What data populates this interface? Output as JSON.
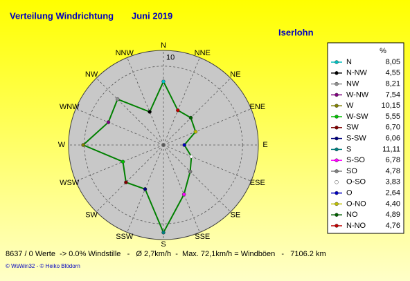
{
  "title": "Verteilung Windrichtung",
  "period": "Juni 2019",
  "location": "Iserlohn",
  "chart_data": {
    "type": "polar",
    "directions": [
      "N",
      "NNE",
      "NE",
      "ENE",
      "E",
      "ESE",
      "SE",
      "SSE",
      "S",
      "SSW",
      "SW",
      "WSW",
      "W",
      "WNW",
      "NW",
      "NNW"
    ],
    "rlim": [
      0,
      12
    ],
    "rticks": [
      10
    ],
    "line_color": "#008000",
    "legend_header": "%",
    "names": [
      "N",
      "N-NW",
      "NW",
      "W-NW",
      "W",
      "W-SW",
      "SW",
      "S-SW",
      "S",
      "S-SO",
      "SO",
      "O-SO",
      "O",
      "O-NO",
      "NO",
      "N-NO"
    ],
    "values": [
      8.05,
      4.55,
      8.21,
      7.54,
      10.15,
      5.55,
      6.7,
      6.06,
      11.11,
      6.78,
      4.78,
      3.83,
      2.64,
      4.4,
      4.89,
      4.76
    ],
    "value_labels": [
      "8,05",
      "4,55",
      "8,21",
      "7,54",
      "10,15",
      "5,55",
      "6,70",
      "6,06",
      "11,11",
      "6,78",
      "4,78",
      "3,83",
      "2,64",
      "4,40",
      "4,89",
      "4,76"
    ],
    "colors": [
      "#00c0c0",
      "#000000",
      "#909090",
      "#800080",
      "#808000",
      "#00c000",
      "#800000",
      "#000080",
      "#008080",
      "#ff00ff",
      "#808080",
      "#ffffff",
      "#0000c0",
      "#c0c000",
      "#006000",
      "#c00000"
    ]
  },
  "footer": {
    "stats": "8637 / 0 Werte  -> 0.0% Windstille   -   Ø 2,7km/h  -  Max. 72,1km/h = Windböen   -   7106.2 km",
    "credits": "© WsWin32 - © Heiko Blödorn"
  }
}
